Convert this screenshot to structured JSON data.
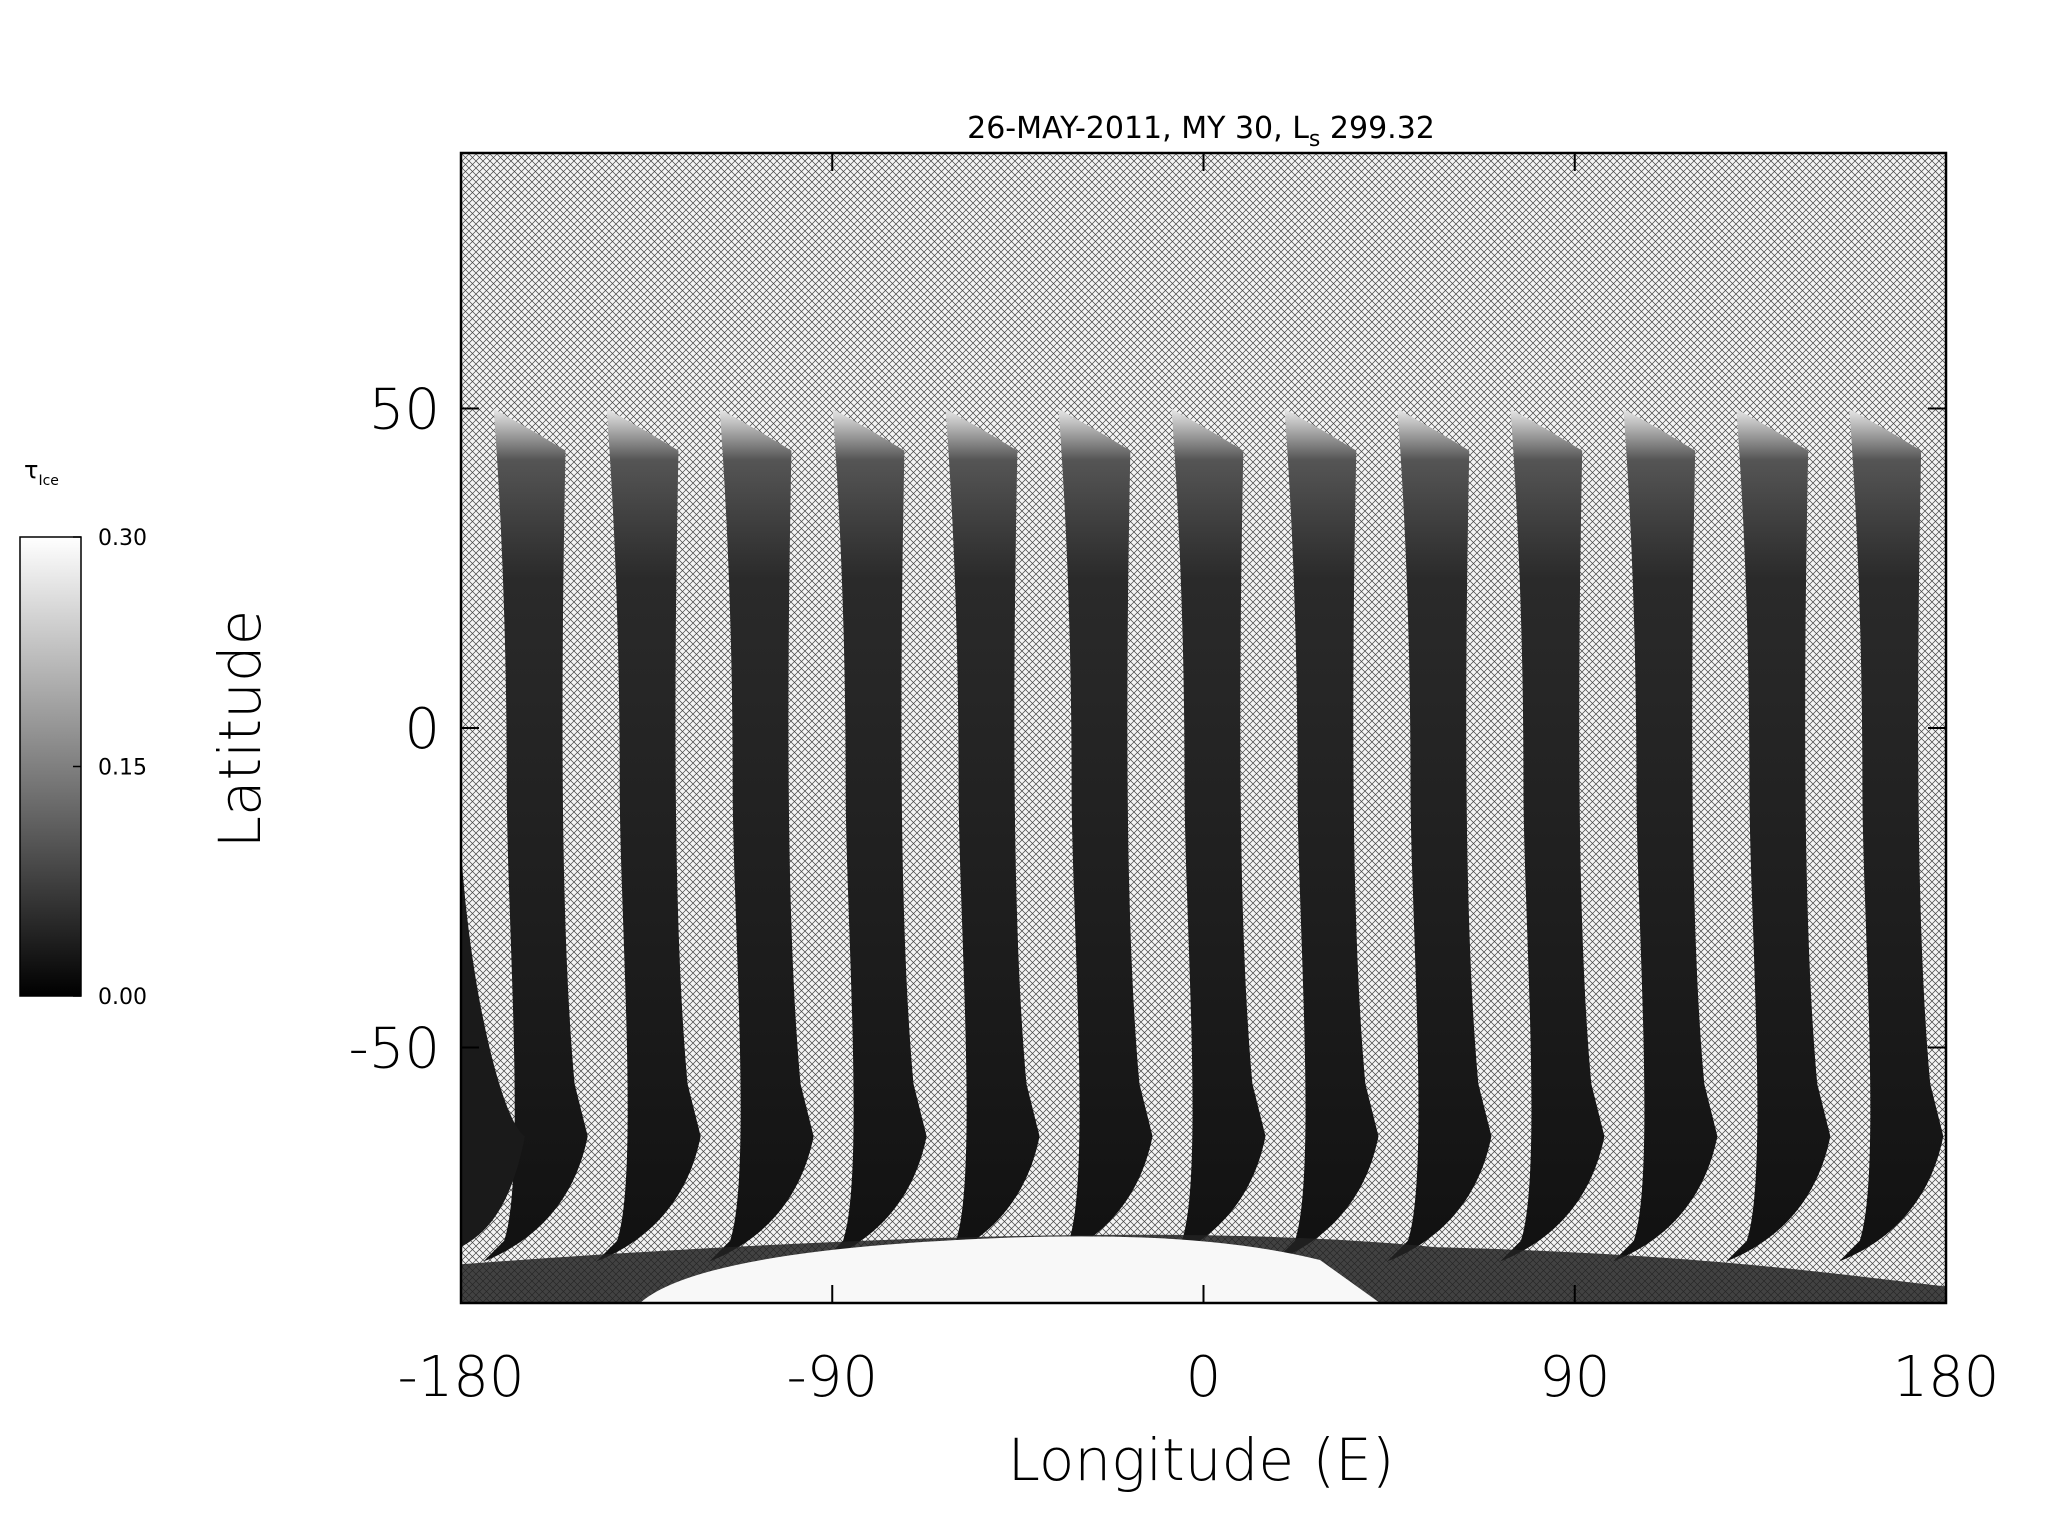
{
  "chart_data": {
    "type": "map",
    "title": [
      "26-MAY-2011, MY 30,  L",
      "s",
      " 299.32"
    ],
    "xlabel": "Longitude (E)",
    "ylabel": "Latitude",
    "xlim": [
      -180,
      180
    ],
    "xticks": [
      -180,
      -90,
      0,
      90,
      180
    ],
    "ylim": [
      -90,
      90
    ],
    "yticks": [
      -50,
      0,
      50
    ],
    "colorbar": {
      "label": [
        "τ",
        "Ice"
      ],
      "lim": [
        0,
        0.3
      ],
      "ticks": [
        {
          "value": 0.3,
          "label": "0.30"
        },
        {
          "value": 0.15,
          "label": "0.15"
        },
        {
          "value": 0,
          "label": "0.00"
        }
      ],
      "colors": [
        "#000000",
        "#ffffff"
      ]
    }
  }
}
